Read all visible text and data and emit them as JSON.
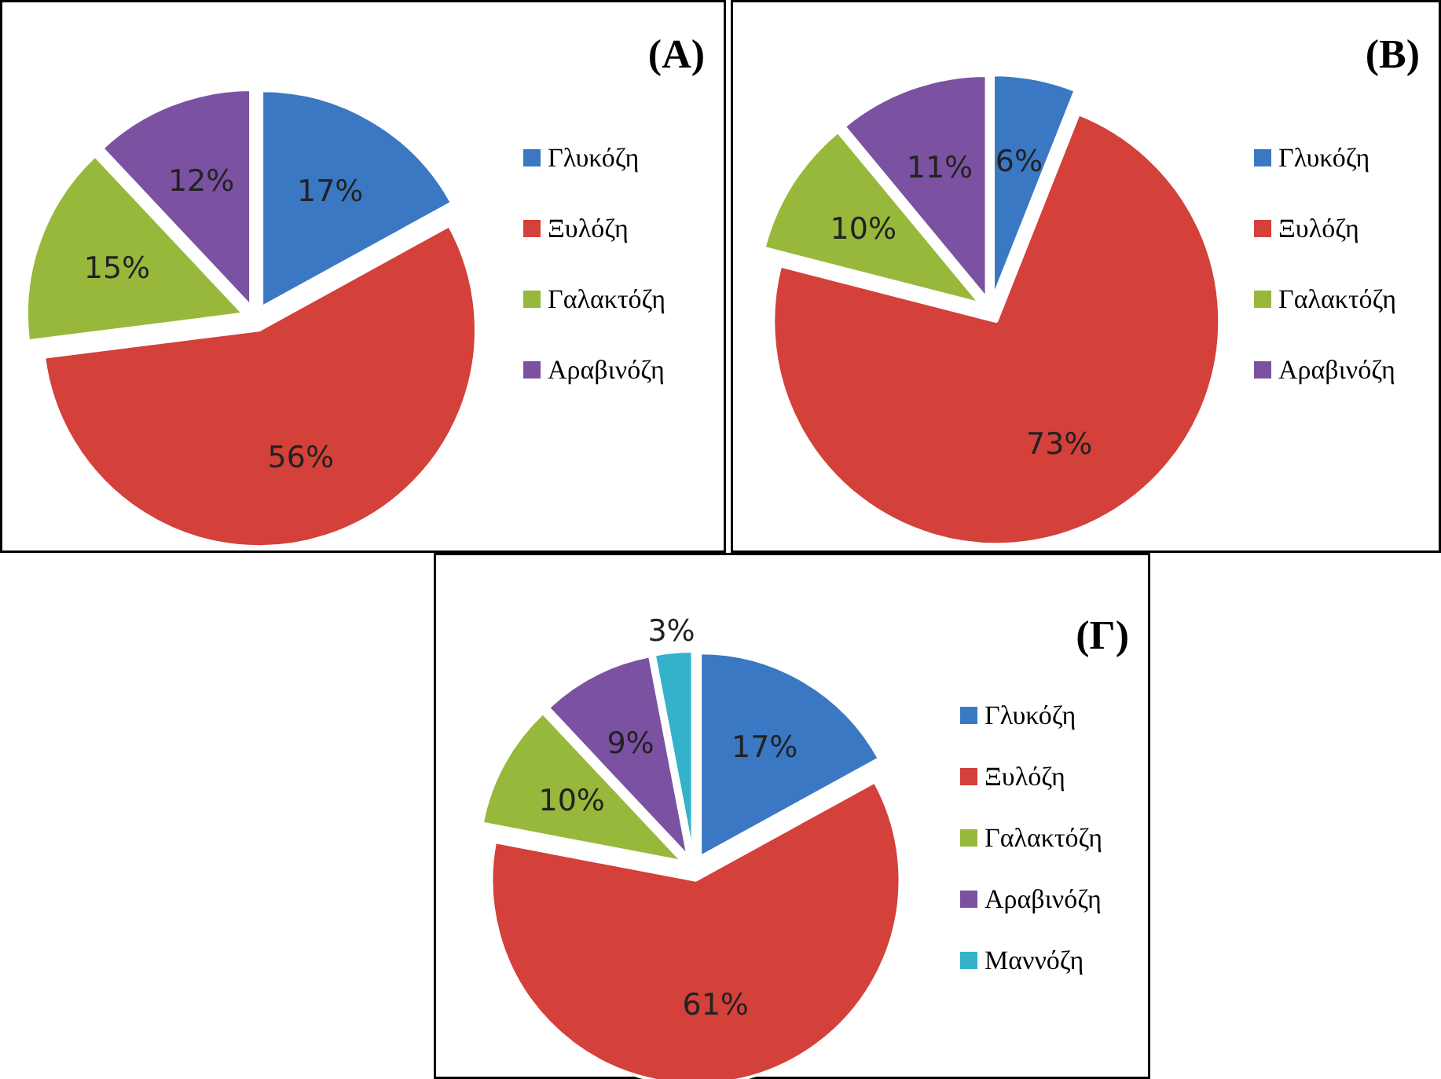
{
  "chart_data": [
    {
      "type": "pie",
      "title": "(A)",
      "categories": [
        "Γλυκόζη",
        "Ξυλόζη",
        "Γαλακτόζη",
        "Αραβινόζη"
      ],
      "values": [
        17,
        56,
        15,
        12
      ],
      "value_labels": [
        "17%",
        "56%",
        "15%",
        "12%"
      ],
      "colors": [
        "#3b78c4",
        "#d4403a",
        "#98b83c",
        "#7b52a1"
      ],
      "legend": "right"
    },
    {
      "type": "pie",
      "title": "(B)",
      "categories": [
        "Γλυκόζη",
        "Ξυλόζη",
        "Γαλακτόζη",
        "Αραβινόζη"
      ],
      "values": [
        6,
        73,
        10,
        11
      ],
      "value_labels": [
        "6%",
        "73%",
        "10%",
        "11%"
      ],
      "colors": [
        "#3b78c4",
        "#d4403a",
        "#98b83c",
        "#7b52a1"
      ],
      "legend": "right"
    },
    {
      "type": "pie",
      "title": "(Γ)",
      "categories": [
        "Γλυκόζη",
        "Ξυλόζη",
        "Γαλακτόζη",
        "Αραβινόζη",
        "Μαννόζη"
      ],
      "values": [
        17,
        61,
        10,
        9,
        3
      ],
      "value_labels": [
        "17%",
        "61%",
        "10%",
        "9%",
        "3%"
      ],
      "colors": [
        "#3b78c4",
        "#d4403a",
        "#98b83c",
        "#7b52a1",
        "#33b2ca"
      ],
      "legend": "right"
    }
  ]
}
